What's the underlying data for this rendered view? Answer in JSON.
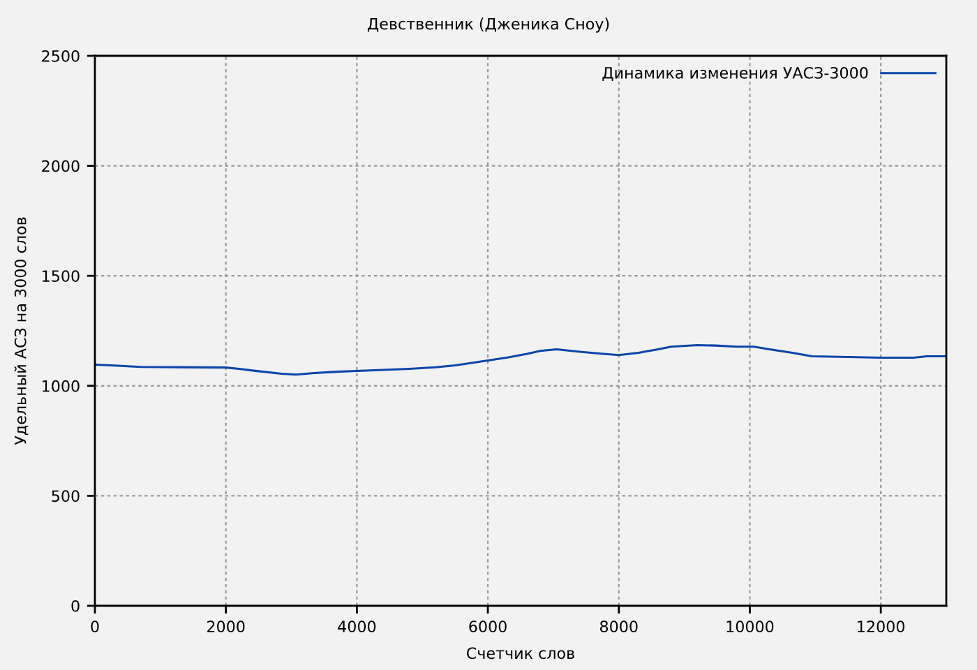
{
  "chart_data": {
    "type": "line",
    "title": "Девственник (Дженика Сноу)",
    "xlabel": "Счетчик слов",
    "ylabel": "Удельный АСЗ на 3000 слов",
    "x": [
      0,
      300,
      700,
      2000,
      2200,
      2450,
      2850,
      3070,
      3350,
      3700,
      4200,
      4800,
      5200,
      5500,
      5700,
      6000,
      6300,
      6600,
      6800,
      7050,
      7400,
      7700,
      8000,
      8300,
      8600,
      8800,
      9200,
      9480,
      9800,
      10060,
      10300,
      10650,
      10950,
      11500,
      12000,
      12500,
      12700,
      13000
    ],
    "series": [
      {
        "name": "Динамика изменения УАСЗ-3000",
        "color": "#0a46aa",
        "values": [
          1096,
          1092,
          1086,
          1083,
          1077,
          1068,
          1055,
          1051,
          1058,
          1064,
          1070,
          1077,
          1084,
          1093,
          1102,
          1115,
          1129,
          1145,
          1159,
          1166,
          1155,
          1147,
          1140,
          1150,
          1166,
          1178,
          1185,
          1183,
          1178,
          1178,
          1166,
          1150,
          1134,
          1131,
          1128,
          1128,
          1134,
          1134
        ]
      }
    ],
    "xlim": [
      0,
      13000
    ],
    "xticks": [
      0,
      2000,
      4000,
      6000,
      8000,
      10000,
      12000
    ],
    "ylim": [
      0,
      2500
    ],
    "yticks": [
      0,
      500,
      1000,
      1500,
      2000,
      2500
    ],
    "grid": true,
    "legend": "top right",
    "line_style": "solid"
  }
}
